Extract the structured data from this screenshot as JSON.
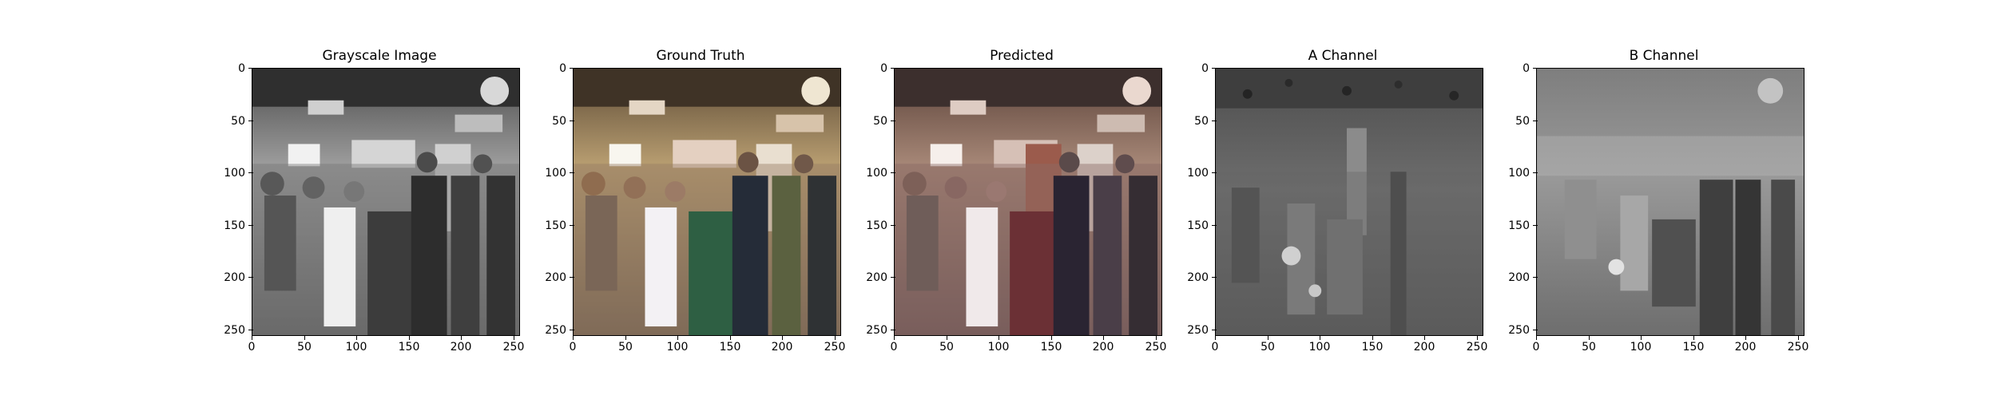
{
  "figure": {
    "panels": [
      {
        "title": "Grayscale Image",
        "image_kind": "grayscale photo of a crowd at a trade-show booth",
        "xticks": [
          "0",
          "50",
          "100",
          "150",
          "200",
          "250"
        ],
        "yticks": [
          "0",
          "50",
          "100",
          "150",
          "200",
          "250"
        ]
      },
      {
        "title": "Ground Truth",
        "image_kind": "color photo of a crowd at a trade-show booth",
        "xticks": [
          "0",
          "50",
          "100",
          "150",
          "200",
          "250"
        ],
        "yticks": [
          "0",
          "50",
          "100",
          "150",
          "200",
          "250"
        ]
      },
      {
        "title": "Predicted",
        "image_kind": "colorized prediction of the same photo",
        "xticks": [
          "0",
          "50",
          "100",
          "150",
          "200",
          "250"
        ],
        "yticks": [
          "0",
          "50",
          "100",
          "150",
          "200",
          "250"
        ]
      },
      {
        "title": "A Channel",
        "image_kind": "grayscale A channel map",
        "xticks": [
          "0",
          "50",
          "100",
          "150",
          "200",
          "250"
        ],
        "yticks": [
          "0",
          "50",
          "100",
          "150",
          "200",
          "250"
        ]
      },
      {
        "title": "B Channel",
        "image_kind": "grayscale B channel map",
        "xticks": [
          "0",
          "50",
          "100",
          "150",
          "200",
          "250"
        ],
        "yticks": [
          "0",
          "50",
          "100",
          "150",
          "200",
          "250"
        ]
      }
    ],
    "colors": {
      "background": "#ffffff",
      "axis": "#000000",
      "warm_light": "#f4e9c9",
      "ground_truth_tint": "#b59b6f",
      "predicted_tint": "#9c5a4c",
      "channel_gray": "#6f6f6f"
    }
  }
}
